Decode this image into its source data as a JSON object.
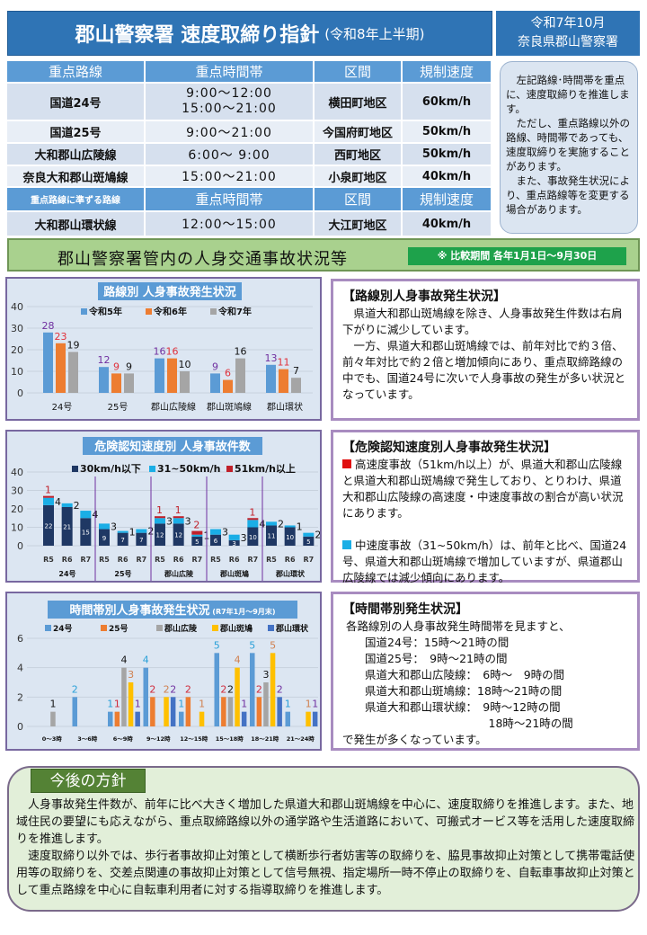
{
  "header": {
    "title": "郡山警察署 速度取締り指針",
    "subtitle": "(令和8年上半期)",
    "issuer_date": "令和7年10月",
    "issuer": "奈良県郡山警察署"
  },
  "table": {
    "headers": [
      "重点路線",
      "重点時間帯",
      "区間",
      "規制速度"
    ],
    "rows": [
      {
        "route": "国道24号",
        "time": "9:00～12:00\n15:00～21:00",
        "area": "横田町地区",
        "speed": "60km/h"
      },
      {
        "route": "国道25号",
        "time": "9:00～21:00",
        "area": "今国府町地区",
        "speed": "50km/h"
      },
      {
        "route": "大和郡山広陵線",
        "time": "6:00～ 9:00",
        "area": "西町地区",
        "speed": "50km/h"
      },
      {
        "route": "奈良大和郡山斑鳩線",
        "time": "15:00～21:00",
        "area": "小泉町地区",
        "speed": "40km/h"
      }
    ],
    "headers2": [
      "重点路線に準ずる路線",
      "重点時間帯",
      "区間",
      "規制速度"
    ],
    "rows2": [
      {
        "route": "大和郡山環状線",
        "time": "12:00～15:00",
        "area": "大江町地区",
        "speed": "40km/h"
      }
    ]
  },
  "note": "　左記路線･時間帯を重点に、速度取締りを推進します。\n　ただし、重点路線以外の路線、時間帯であっても、速度取締りを実施することがあります。\n　また、事故発生状況により、重点路線等を変更する場合があります。",
  "banner": {
    "title": "郡山警察署管内の人身交通事故状況等",
    "period": "※ 比較期間 各年1月1日～9月30日"
  },
  "chart_data": [
    {
      "type": "bar",
      "title": "路線別 人身事故発生状況",
      "categories": [
        "24号",
        "25号",
        "郡山広陵線",
        "郡山斑鳩線",
        "郡山環状"
      ],
      "ylim": [
        0,
        40
      ],
      "yticks": [
        0,
        10,
        20,
        30,
        40
      ],
      "legend": "top",
      "series": [
        {
          "name": "令和5年",
          "values": [
            28,
            12,
            16,
            9,
            13
          ],
          "color": "#5b9bd5",
          "label_color": "#7030a0"
        },
        {
          "name": "令和6年",
          "values": [
            23,
            9,
            16,
            6,
            11
          ],
          "color": "#ed7d31",
          "label_color": "#e0303a"
        },
        {
          "name": "令和7年",
          "values": [
            19,
            9,
            10,
            16,
            7
          ],
          "color": "#a5a5a5",
          "label_color": "#111111"
        }
      ]
    },
    {
      "type": "bar",
      "stacked": true,
      "title": "危険認知速度別 人身事故件数",
      "groups": [
        "24号",
        "25号",
        "郡山広陵",
        "郡山斑鳩",
        "郡山環状"
      ],
      "subcategories": [
        "R5",
        "R6",
        "R7"
      ],
      "ylim": [
        0,
        40
      ],
      "yticks": [
        0,
        10,
        20,
        30,
        40
      ],
      "legend": "top",
      "series": [
        {
          "name": "30km/h以下",
          "color": "#1f3864",
          "values": [
            22,
            21,
            15,
            9,
            7,
            7,
            12,
            12,
            5,
            6,
            3,
            10,
            11,
            10,
            5
          ]
        },
        {
          "name": "31~50km/h",
          "color": "#1aaee6",
          "values": [
            4,
            2,
            4,
            3,
            1,
            2,
            3,
            3,
            1,
            3,
            3,
            4,
            2,
            1,
            2
          ]
        },
        {
          "name": "51km/h以上",
          "color": "#c0202a",
          "values": [
            1,
            0,
            0,
            0,
            0,
            0,
            1,
            1,
            2,
            0,
            0,
            1,
            0,
            0,
            0
          ]
        }
      ]
    },
    {
      "type": "bar",
      "title": "時間帯別人身事故発生状況",
      "title_note": "(R7年1月～9月末)",
      "categories": [
        "0～3時",
        "3～6時",
        "6～9時",
        "9～12時",
        "12～15時",
        "15～18時",
        "18～21時",
        "21～24時"
      ],
      "ylim": [
        0,
        6
      ],
      "yticks": [
        0,
        2,
        4,
        6
      ],
      "legend": "top",
      "series": [
        {
          "name": "24号",
          "color": "#5b9bd5",
          "label_color": "#2aa0d8",
          "values": [
            0,
            2,
            1,
            4,
            1,
            5,
            5,
            1
          ]
        },
        {
          "name": "25号",
          "color": "#ed7d31",
          "label_color": "#d02a3a",
          "values": [
            0,
            0,
            1,
            2,
            2,
            2,
            2,
            0
          ]
        },
        {
          "name": "郡山広陵",
          "color": "#a5a5a5",
          "label_color": "#111111",
          "values": [
            1,
            0,
            4,
            0,
            0,
            2,
            3,
            0
          ]
        },
        {
          "name": "郡山斑鳩",
          "color": "#ffc000",
          "label_color": "#d08050",
          "values": [
            0,
            0,
            3,
            2,
            1,
            4,
            5,
            1
          ]
        },
        {
          "name": "郡山環状",
          "color": "#4472c4",
          "label_color": "#7030a0",
          "values": [
            0,
            0,
            1,
            2,
            0,
            1,
            2,
            1
          ]
        }
      ]
    }
  ],
  "texts": {
    "route": {
      "heading": "【路線別人身事故発生状況】",
      "body": "　県道大和郡山斑鳩線を除き、人身事故発生件数は右肩下がりに減少しています。\n　一方、県道大和郡山斑鳩線では、前年対比で約３倍、前々年対比で約２倍と増加傾向にあり、重点取締路線の中でも、国道24号に次いで人身事故の発生が多い状況となっています。"
    },
    "speed": {
      "heading": "【危険認知速度別人身事故発生状況】",
      "p1": "高速度事故（51km/h以上）が、県道大和郡山広陵線と県道大和郡山斑鳩線で発生しており、とりわけ、県道大和郡山広陵線の高速度・中速度事故の割合が高い状況にあります。",
      "p2": "中速度事故（31~50km/h）は、前年と比べ、国道24号、県道大和郡山斑鳩線で増加していますが、県道郡山広陵線では減少傾向にあります。",
      "red": "#e01010",
      "cyan": "#1aaee6"
    },
    "time": {
      "heading": "【時間帯別発生状況】",
      "body": " 各路線別の人身事故発生時間帯を見ますと、\n　　国道24号：15時～21時の間\n　　国道25号：　9時～21時の間\n　　県道大和郡山広陵線：　6時～　9時の間\n　　県道大和郡山斑鳩線：18時～21時の間\n　　県道大和郡山環状線：　9時～12時の間\n　　　　　　　　　　　　　18時～21時の間\nで発生が多くなっています。"
    }
  },
  "future": {
    "title": "今後の方針",
    "body": "　人身事故発生件数が、前年に比べ大きく増加した県道大和郡山斑鳩線を中心に、速度取締りを推進します。また、地域住民の要望にも応えながら、重点取締路線以外の通学路や生活道路において、可搬式オービス等を活用した速度取締りを推進します。\n　速度取締り以外では、歩行者事故抑止対策として横断歩行者妨害等の取締りを、脇見事故抑止対策として携帯電話使用等の取締りを、交差点関連の事故抑止対策として信号無視、指定場所一時不停止の取締りを、自転車事故抑止対策として重点路線を中心に自転車利用者に対する指導取締りを推進します。"
  }
}
